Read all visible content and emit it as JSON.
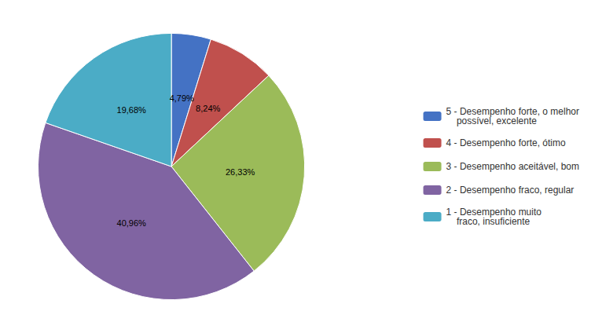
{
  "chart_data": {
    "type": "pie",
    "categories": [
      "5 - Desempenho forte, o melhor\n    possível, excelente",
      "4 - Desempenho forte, ótimo",
      "3 - Desempenho aceitável, bom",
      "2 - Desempenho fraco, regular",
      "1 - Desempenho muito\n    fraco, insuficiente"
    ],
    "values": [
      4.79,
      8.24,
      26.33,
      40.96,
      19.68
    ],
    "value_labels": [
      "4,79%",
      "8,24%",
      "26,33%",
      "40,96%",
      "19,68%"
    ],
    "colors": [
      "#4472C4",
      "#C0504D",
      "#9BBB59",
      "#8064A2",
      "#4BACC6"
    ],
    "data_labels": true,
    "legend": "right"
  }
}
